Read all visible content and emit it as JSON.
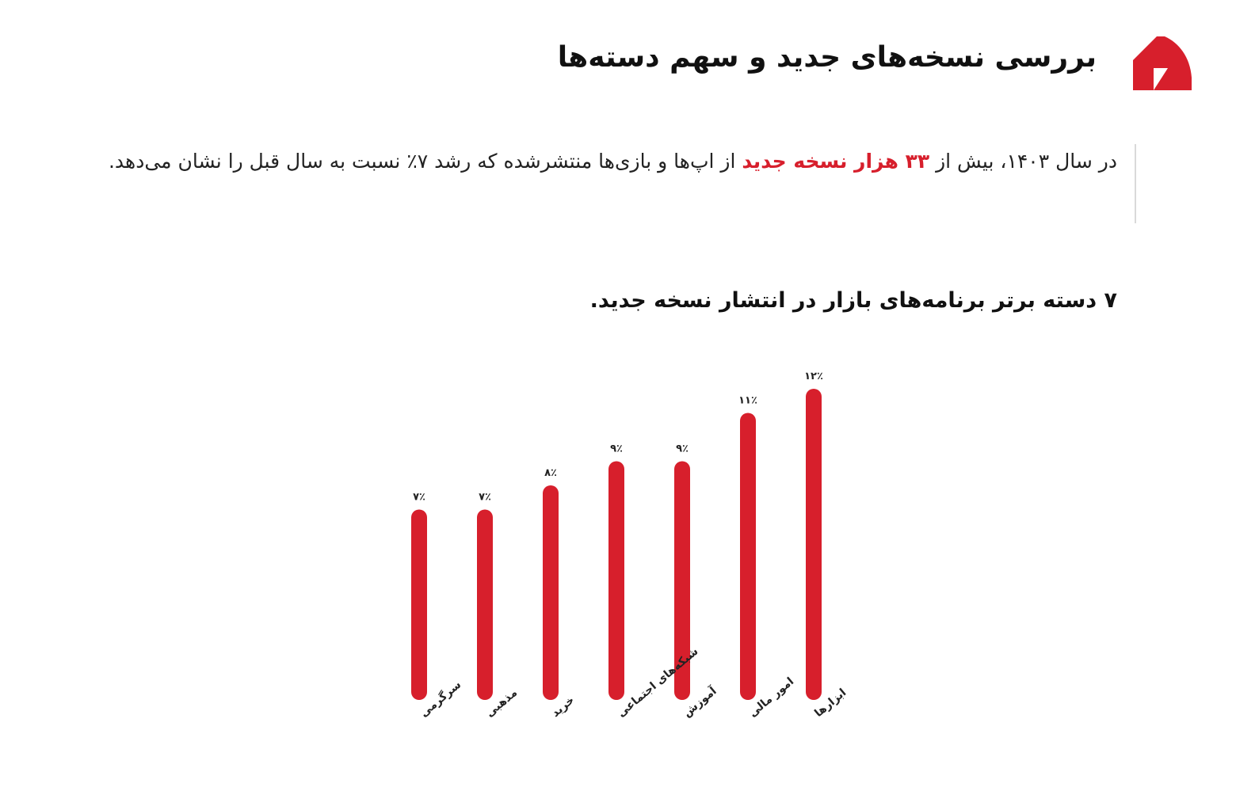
{
  "header": {
    "title": "بررسی نسخه‌های جدید و سهم دسته‌ها",
    "logo_color": "#d71f2c"
  },
  "intro": {
    "text_before": "در سال ۱۴۰۳، بیش از",
    "highlight": "۳۳ هزار نسخه جدید",
    "text_after": "از اپ‌ها و بازی‌ها منتشرشده که رشد ۷٪ نسبت به سال قبل را نشان می‌دهد."
  },
  "chart_title": "۷ دسته برتر برنامه‌های بازار در انتشار نسخه جدید.",
  "chart_data": {
    "type": "bar",
    "categories": [
      "ابزارها",
      "امور مالی",
      "آموزش",
      "شبکه‌های اجتماعی",
      "خرید",
      "مذهبی",
      "سرگرمی"
    ],
    "values": [
      12,
      11,
      9,
      9,
      8,
      7,
      7
    ],
    "value_labels": [
      "۱۲٪",
      "۱۱٪",
      "۹٪",
      "۹٪",
      "۸٪",
      "۷٪",
      "۷٪"
    ],
    "bar_color": "#d71f2c",
    "grid": false,
    "legend": "none"
  }
}
